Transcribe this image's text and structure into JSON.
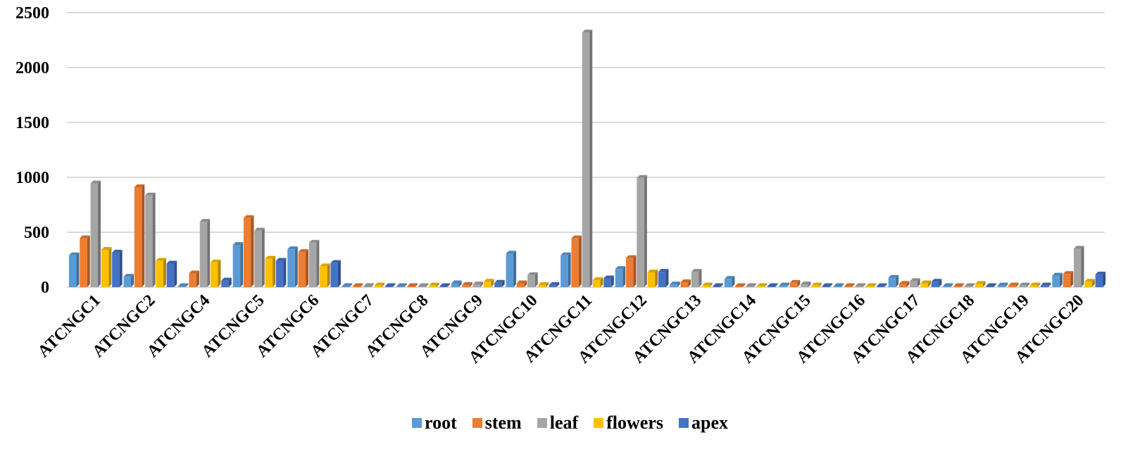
{
  "chart_data": {
    "type": "bar",
    "categories": [
      "ATCNGC1",
      "ATCNGC2",
      "ATCNGC4",
      "ATCNGC5",
      "ATCNGC6",
      "ATCNGC7",
      "ATCNGC8",
      "ATCNGC9",
      "ATCNGC10",
      "ATCNGC11",
      "ATCNGC12",
      "ATCNGC13",
      "ATCNGC14",
      "ATCNGC15",
      "ATCNGC16",
      "ATCNGC17",
      "ATCNGC18",
      "ATCNGC19",
      "ATCNGC20"
    ],
    "series": [
      {
        "name": "root",
        "color": "#5B9BD5",
        "values": [
          290,
          95,
          5,
          385,
          345,
          5,
          5,
          35,
          305,
          290,
          165,
          25,
          75,
          15,
          5,
          85,
          5,
          15,
          105
        ]
      },
      {
        "name": "stem",
        "color": "#ED7D31",
        "values": [
          445,
          910,
          125,
          630,
          320,
          5,
          5,
          20,
          35,
          445,
          265,
          45,
          10,
          40,
          10,
          30,
          5,
          15,
          120
        ]
      },
      {
        "name": "leaf",
        "color": "#A5A5A5",
        "values": [
          945,
          835,
          595,
          515,
          405,
          5,
          5,
          25,
          110,
          2320,
          995,
          140,
          10,
          25,
          5,
          55,
          5,
          15,
          350
        ]
      },
      {
        "name": "flowers",
        "color": "#FFC000",
        "values": [
          340,
          240,
          225,
          260,
          190,
          15,
          15,
          50,
          20,
          65,
          135,
          15,
          10,
          15,
          5,
          35,
          30,
          15,
          50
        ]
      },
      {
        "name": "apex",
        "color": "#4472C4",
        "values": [
          315,
          215,
          60,
          240,
          220,
          5,
          5,
          40,
          20,
          80,
          140,
          10,
          5,
          5,
          5,
          50,
          5,
          15,
          115
        ]
      }
    ],
    "yticks": [
      "0",
      "500",
      "1000",
      "1500",
      "2000",
      "2500"
    ],
    "ylim": [
      0,
      2500
    ],
    "title": "",
    "xlabel": "",
    "ylabel": "",
    "grid": true,
    "legend_position": "bottom",
    "gridline_color": "#D9D9D9"
  }
}
